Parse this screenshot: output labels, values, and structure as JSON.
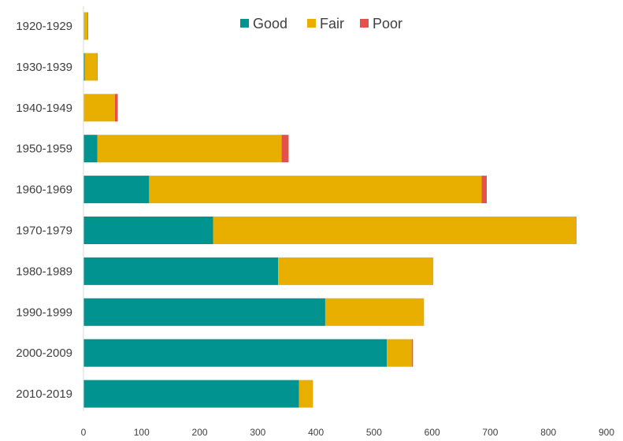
{
  "chart_data": {
    "type": "bar",
    "orientation": "horizontal",
    "stacked": true,
    "categories": [
      "1920-1929",
      "1930-1939",
      "1940-1949",
      "1950-1959",
      "1960-1969",
      "1970-1979",
      "1980-1989",
      "1990-1999",
      "2000-2009",
      "2010-2019"
    ],
    "series": [
      {
        "name": "Good",
        "color": "#00938F",
        "values": [
          1,
          2,
          0,
          24,
          113,
          223,
          335,
          416,
          522,
          371
        ]
      },
      {
        "name": "Fair",
        "color": "#E8AF00",
        "values": [
          6,
          21,
          54,
          317,
          572,
          624,
          267,
          170,
          43,
          24
        ]
      },
      {
        "name": "Poor",
        "color": "#E4514A",
        "values": [
          1,
          1,
          5,
          12,
          9,
          1,
          0,
          0,
          2,
          0
        ]
      }
    ],
    "x_ticks": [
      "0",
      "100",
      "200",
      "300",
      "400",
      "500",
      "600",
      "700",
      "800",
      "900"
    ],
    "xlim": [
      0,
      900
    ],
    "grid": false,
    "legend_position": "top-center"
  }
}
